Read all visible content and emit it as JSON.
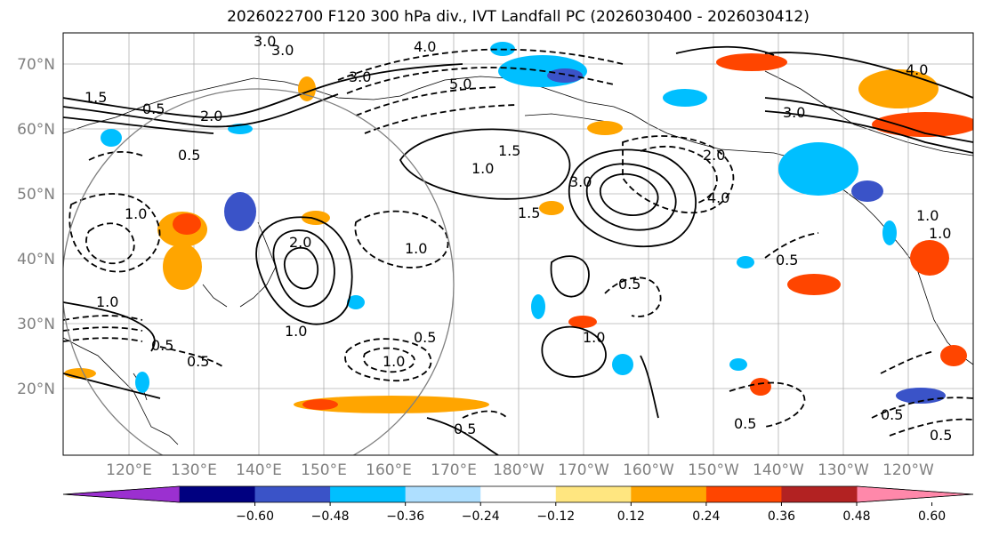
{
  "title": "2026022700 F120 300 hPa div., IVT Landfall PC (2026030400 - 2026030412)",
  "lat_labels": [
    "70°N",
    "60°N",
    "50°N",
    "40°N",
    "30°N",
    "20°N"
  ],
  "lon_labels": [
    "120°E",
    "130°E",
    "140°E",
    "150°E",
    "160°E",
    "170°E",
    "180°W",
    "170°W",
    "160°W",
    "150°W",
    "140°W",
    "130°W",
    "120°W"
  ],
  "colorbar": {
    "colors": [
      "#9b30d0",
      "#000080",
      "#3a53c8",
      "#00bfff",
      "#aedfff",
      "#ffffff",
      "#ffe680",
      "#ffa500",
      "#ff4500",
      "#b22222",
      "#ff88aa"
    ],
    "tick_labels": [
      "−0.60",
      "−0.48",
      "−0.36",
      "−0.24",
      "−0.12",
      "0.12",
      "0.24",
      "0.36",
      "0.48",
      "0.60"
    ]
  },
  "contour_labels": {
    "solid": [
      "1.5",
      "2.0",
      "3.0",
      "0.5",
      "1.0",
      "1.5",
      "3.0",
      "1.5",
      "1.0",
      "2.0",
      "1.0",
      "1.0",
      "3.0",
      "1.0",
      "1.0"
    ],
    "dashed": [
      "3.0",
      "4.0",
      "5.0",
      "4.0",
      "3.0",
      "2.0",
      "0.5",
      "1.0",
      "0.5",
      "1.0",
      "4.0",
      "0.5",
      "1.0",
      "0.5",
      "0.5",
      "0.5",
      "0.5",
      "0.5",
      "0.5",
      "0.5"
    ]
  }
}
